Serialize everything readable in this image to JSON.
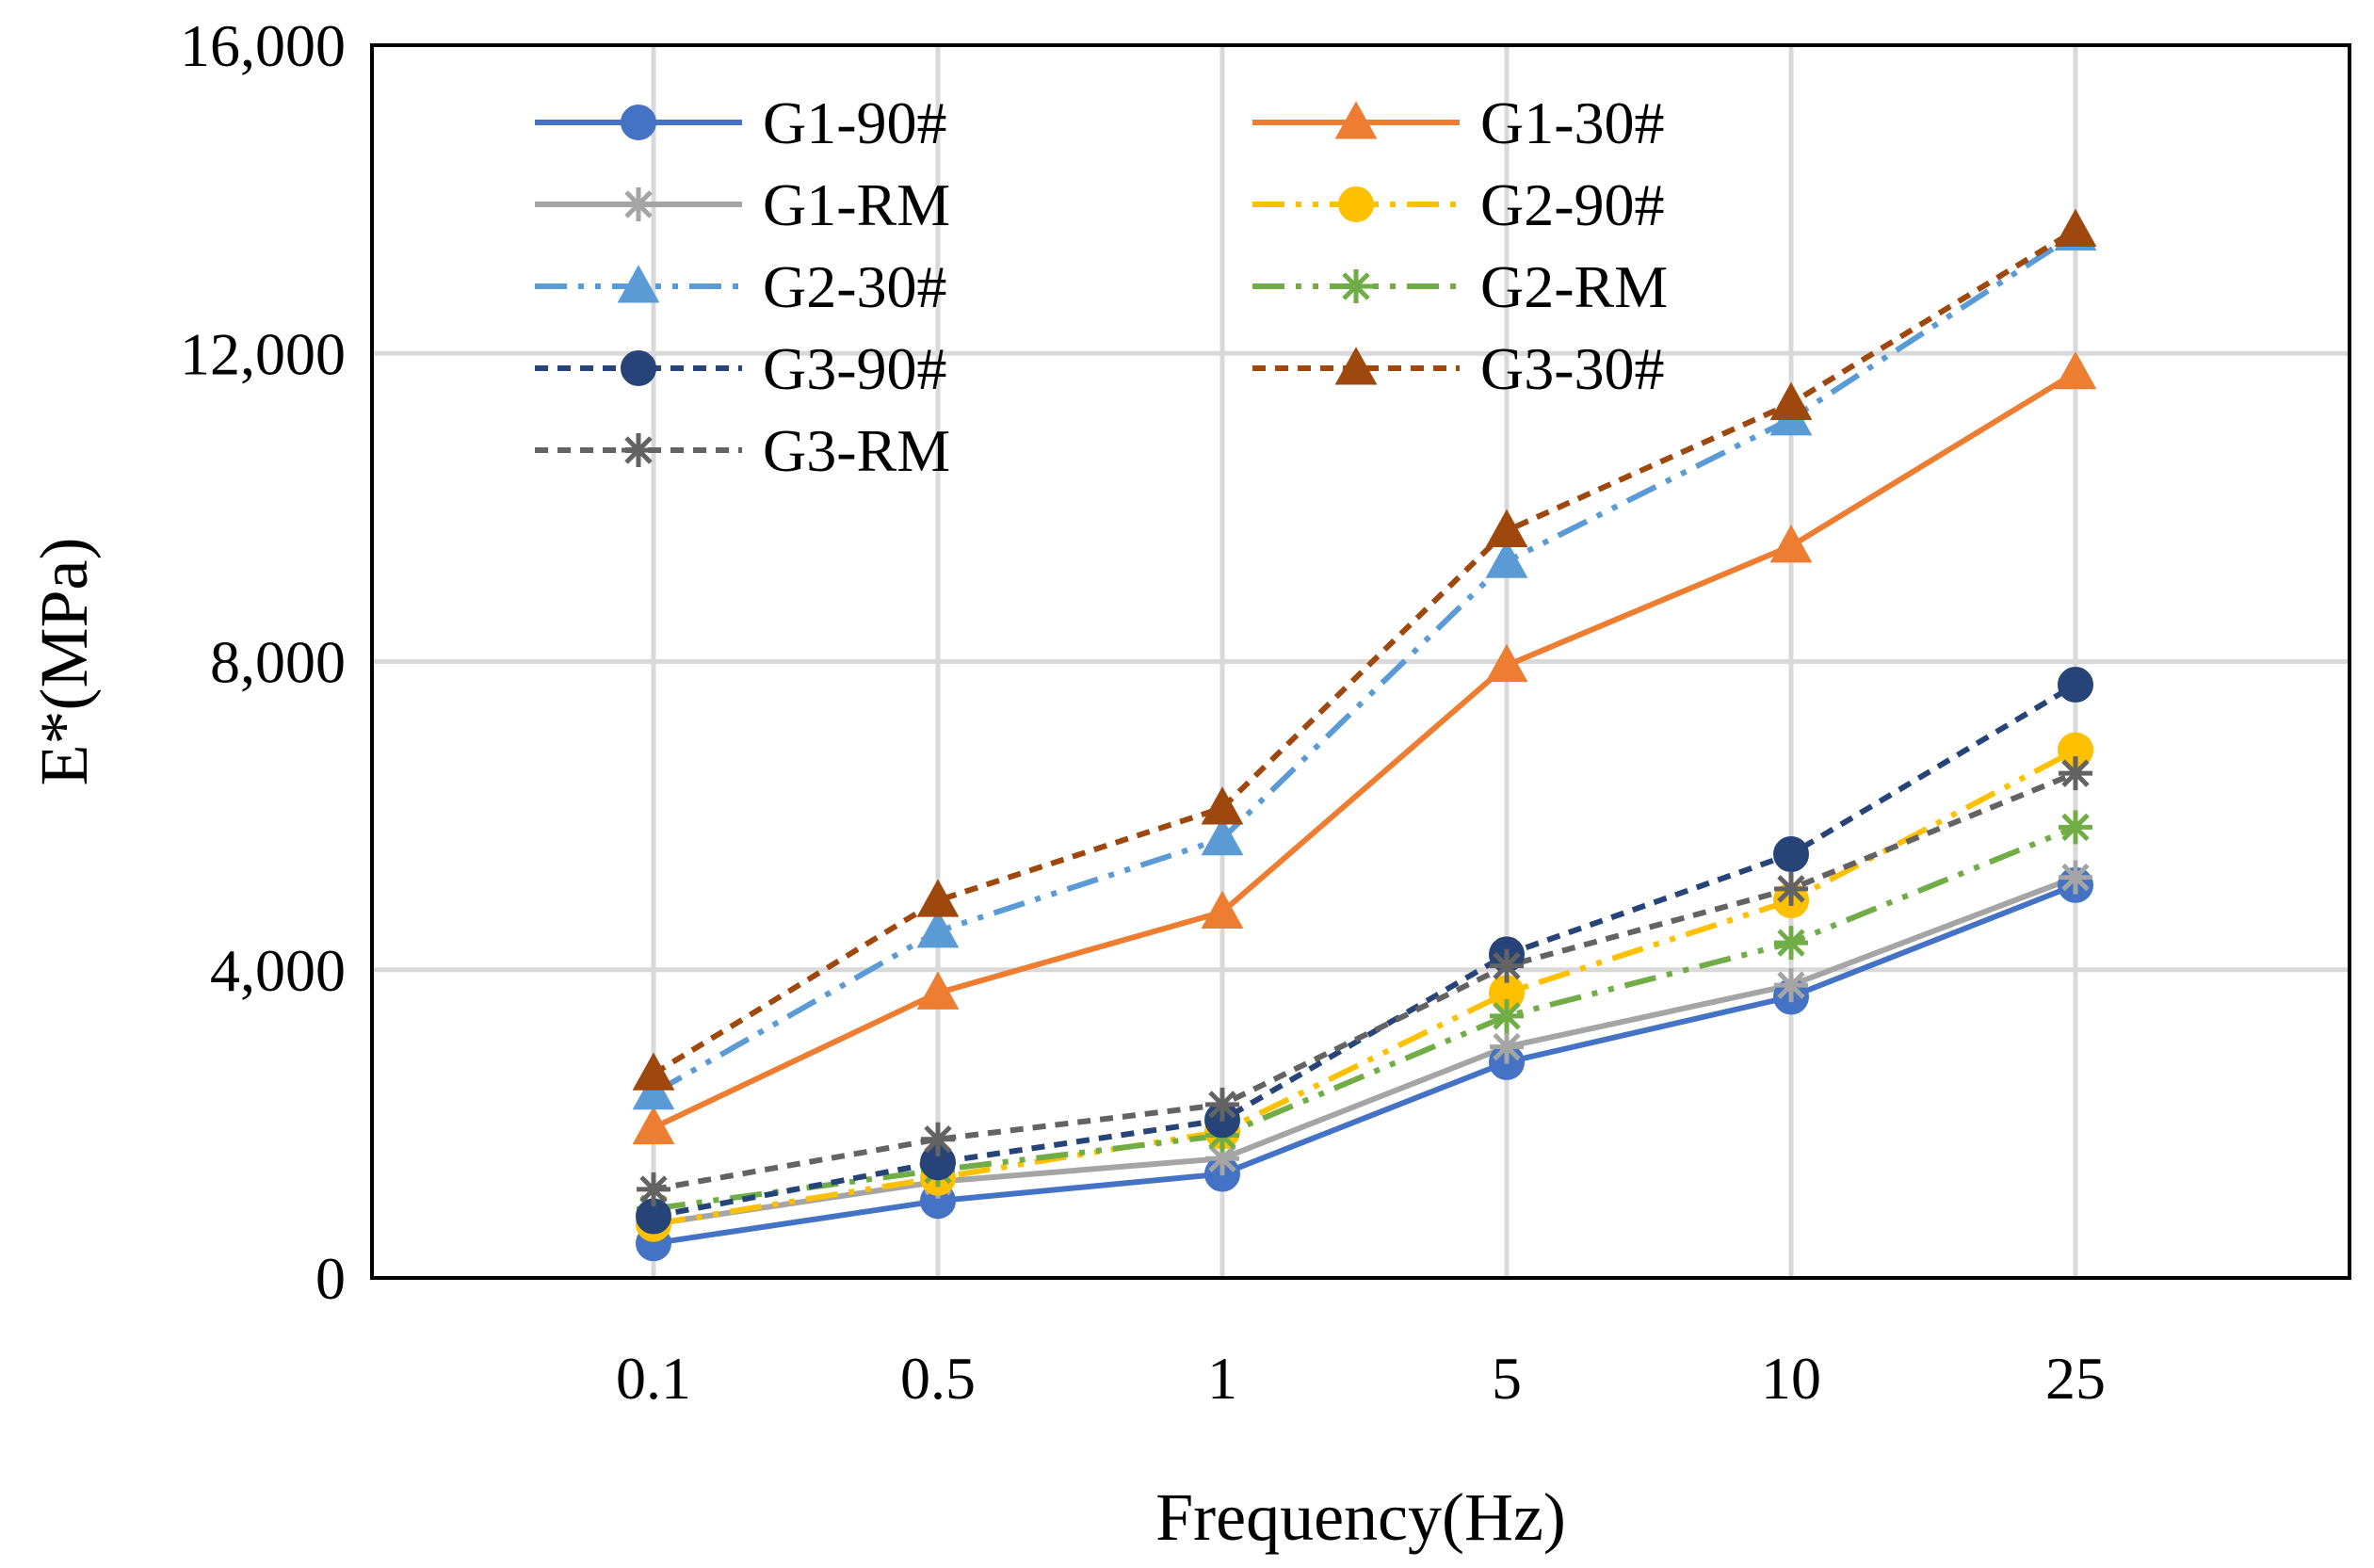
{
  "chart_data": {
    "type": "line",
    "title": "",
    "xlabel": "Frequency(Hz)",
    "ylabel": "E*(MPa)",
    "categories": [
      "0.1",
      "0.5",
      "1",
      "5",
      "10",
      "25"
    ],
    "ylim": [
      0,
      16000
    ],
    "yticks": [
      0,
      4000,
      8000,
      12000,
      16000
    ],
    "ytick_labels": [
      "0",
      "4,000",
      "8,000",
      "12,000",
      "16,000"
    ],
    "grid": true,
    "legend_position": "top-left",
    "series": [
      {
        "name": "G1-90#",
        "color": "#4472C4",
        "marker": "circle",
        "dash": "solid",
        "values": [
          450,
          1000,
          1350,
          2800,
          3650,
          5100
        ]
      },
      {
        "name": "G1-30#",
        "color": "#ED7D31",
        "marker": "triangle",
        "dash": "solid",
        "values": [
          1950,
          3700,
          4750,
          7950,
          9500,
          11750
        ]
      },
      {
        "name": "G1-RM",
        "color": "#A5A5A5",
        "marker": "asterisk",
        "dash": "solid",
        "values": [
          700,
          1250,
          1550,
          3000,
          3800,
          5200
        ]
      },
      {
        "name": "G2-90#",
        "color": "#FFC000",
        "marker": "circle",
        "dash": "longdashdotdot",
        "values": [
          700,
          1300,
          1900,
          3700,
          4900,
          6850
        ]
      },
      {
        "name": "G2-30#",
        "color": "#5B9BD5",
        "marker": "triangle",
        "dash": "longdashdotdot",
        "values": [
          2400,
          4500,
          5700,
          9300,
          11150,
          13550
        ]
      },
      {
        "name": "G2-RM",
        "color": "#70AD47",
        "marker": "asterisk",
        "dash": "longdashdotdot",
        "values": [
          900,
          1400,
          1850,
          3400,
          4350,
          5850
        ]
      },
      {
        "name": "G3-90#",
        "color": "#264478",
        "marker": "circle",
        "dash": "dashed",
        "values": [
          800,
          1500,
          2050,
          4200,
          5500,
          7700
        ]
      },
      {
        "name": "G3-30#",
        "color": "#9E480E",
        "marker": "triangle",
        "dash": "dashed",
        "values": [
          2650,
          4900,
          6100,
          9700,
          11350,
          13600
        ]
      },
      {
        "name": "G3-RM",
        "color": "#636363",
        "marker": "asterisk",
        "dash": "dashed",
        "values": [
          1150,
          1800,
          2250,
          4050,
          5050,
          6550
        ]
      }
    ]
  }
}
